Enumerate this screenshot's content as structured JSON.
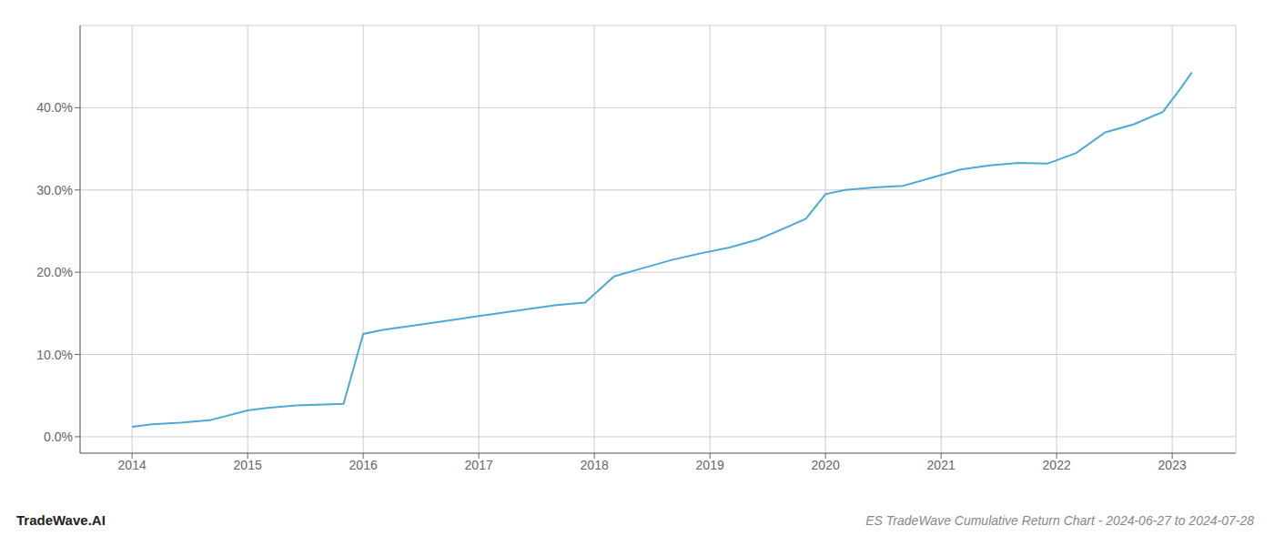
{
  "chart_data": {
    "type": "line",
    "title": "ES TradeWave Cumulative Return Chart - 2024-06-27 to 2024-07-28",
    "annotations": [
      "TradeWave.AI"
    ],
    "x": [
      2014.0,
      2014.17,
      2014.42,
      2014.67,
      2015.0,
      2015.17,
      2015.42,
      2015.83,
      2016.0,
      2016.17,
      2016.42,
      2016.67,
      2016.92,
      2017.17,
      2017.42,
      2017.67,
      2017.92,
      2018.17,
      2018.42,
      2018.67,
      2018.92,
      2019.17,
      2019.42,
      2019.67,
      2019.83,
      2020.0,
      2020.17,
      2020.42,
      2020.67,
      2020.92,
      2021.17,
      2021.42,
      2021.67,
      2021.92,
      2022.17,
      2022.42,
      2022.67,
      2022.92,
      2023.08,
      2023.17
    ],
    "values": [
      1.2,
      1.5,
      1.7,
      2.0,
      3.2,
      3.5,
      3.8,
      4.0,
      12.5,
      13.0,
      13.5,
      14.0,
      14.5,
      15.0,
      15.5,
      16.0,
      16.3,
      19.5,
      20.5,
      21.5,
      22.3,
      23.0,
      24.0,
      25.5,
      26.5,
      29.5,
      30.0,
      30.3,
      30.5,
      31.5,
      32.5,
      33.0,
      33.3,
      33.2,
      34.5,
      37.0,
      38.0,
      39.5,
      42.5,
      44.3
    ],
    "color": "#4fa8d5",
    "xlim": [
      2013.55,
      2023.55
    ],
    "xticks": [
      2014,
      2015,
      2016,
      2017,
      2018,
      2019,
      2020,
      2021,
      2022,
      2023
    ],
    "ylim": [
      -2,
      50
    ],
    "yticks": [
      {
        "value": 0.0,
        "label": "0.0%"
      },
      {
        "value": 10.0,
        "label": "10.0%"
      },
      {
        "value": 20.0,
        "label": "20.0%"
      },
      {
        "value": 30.0,
        "label": "30.0%"
      },
      {
        "value": 40.0,
        "label": "40.0%"
      }
    ],
    "grid": true
  }
}
